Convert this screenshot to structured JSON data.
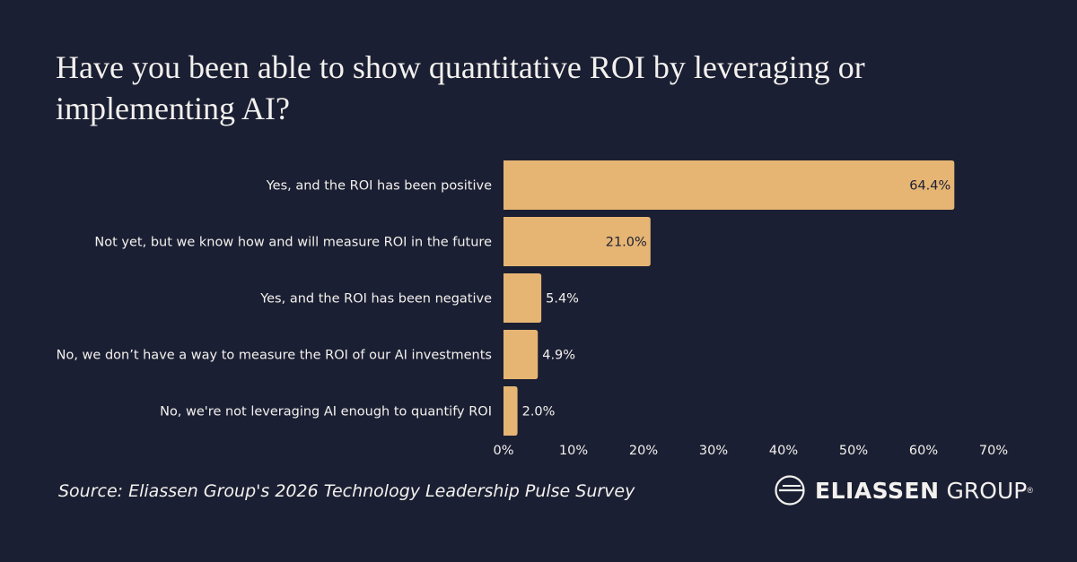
{
  "chart_data": {
    "type": "bar",
    "orientation": "horizontal",
    "title": "Have you been able to show quantitative ROI by leveraging or implementing AI?",
    "categories": [
      "Yes, and the ROI has been positive",
      "Not yet, but we know how and will measure ROI in the future",
      "Yes, and the ROI has been negative",
      "No, we don’t have a way to measure the ROI of our AI investments",
      "No, we're not leveraging AI enough to quantify ROI"
    ],
    "values": [
      64.4,
      21.0,
      5.4,
      4.9,
      2.0
    ],
    "data_labels": [
      "64.4%",
      "21.0%",
      "5.4%",
      "4.9%",
      "2.0%"
    ],
    "xlim": [
      0,
      70
    ],
    "x_ticks": [
      "0%",
      "10%",
      "20%",
      "30%",
      "40%",
      "50%",
      "60%",
      "70%"
    ],
    "grid": false,
    "bar_color": "#e6b574",
    "background": "#1b1f33"
  },
  "footer": {
    "source": "Source: Eliassen Group's 2026 Technology Leadership Pulse Survey",
    "logo_bold": "ELIASSEN",
    "logo_light": "GROUP",
    "logo_mark": "®"
  }
}
